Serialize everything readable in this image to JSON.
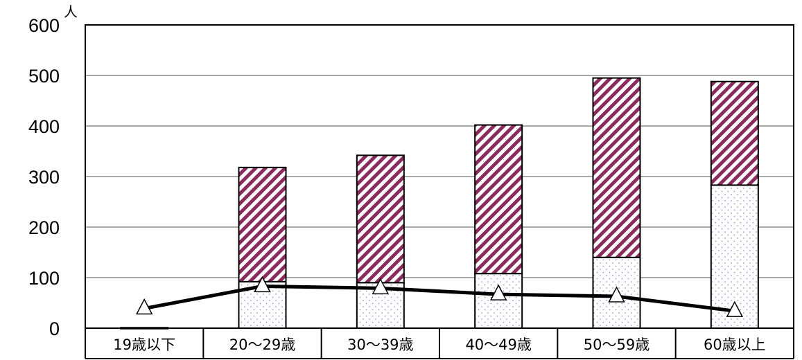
{
  "chart_data": {
    "type": "bar",
    "stacked": true,
    "unit_label": "人",
    "categories": [
      "19歳以下",
      "20～29歳",
      "30～39歳",
      "40～49歳",
      "50～59歳",
      "60歳以上"
    ],
    "series": [
      {
        "kind": "bar",
        "pattern": "dots",
        "color": "#c8b8e8",
        "values": [
          1,
          92,
          90,
          108,
          140,
          283
        ]
      },
      {
        "kind": "bar",
        "pattern": "diagonal-stripes",
        "color": "#8b2a5c",
        "values": [
          0,
          226,
          252,
          294,
          355,
          205
        ]
      },
      {
        "kind": "line",
        "marker": "triangle",
        "color": "#000000",
        "values": [
          39,
          83,
          79,
          67,
          63,
          34
        ]
      }
    ],
    "ylim": [
      0,
      600
    ],
    "yticks": [
      0,
      100,
      200,
      300,
      400,
      500,
      600
    ],
    "grid": true,
    "legend": "none"
  }
}
